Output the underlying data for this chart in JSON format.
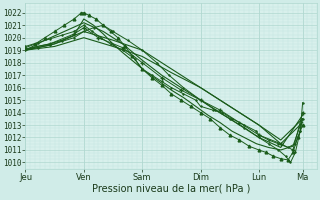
{
  "bg_color": "#d0ece8",
  "plot_bg": "#d8f0ec",
  "grid_major_color": "#b0d8d0",
  "grid_minor_color": "#c0e4de",
  "line_color": "#1a5c1a",
  "ylabel_ticks": [
    1010,
    1011,
    1012,
    1013,
    1014,
    1015,
    1016,
    1017,
    1018,
    1019,
    1020,
    1021,
    1022
  ],
  "day_labels": [
    "Jeu",
    "Ven",
    "Sam",
    "Dim",
    "Lun",
    "Ma"
  ],
  "day_positions": [
    0,
    48,
    96,
    144,
    192,
    228
  ],
  "xlabel": "Pression niveau de la mer( hPa )",
  "lines": [
    {
      "x": [
        0,
        10,
        20,
        30,
        40,
        48,
        56,
        64,
        72,
        80,
        90,
        100,
        110,
        120,
        130,
        140,
        150,
        160,
        170,
        180,
        190,
        200,
        210,
        220,
        228
      ],
      "y": [
        1019.0,
        1019.3,
        1019.5,
        1019.8,
        1020.2,
        1021.5,
        1021.0,
        1020.3,
        1019.5,
        1018.8,
        1018.0,
        1017.2,
        1016.5,
        1015.8,
        1015.2,
        1014.5,
        1013.8,
        1013.2,
        1012.5,
        1012.0,
        1011.5,
        1011.2,
        1011.0,
        1011.3,
        1013.5
      ],
      "marker": "none",
      "lw": 0.8
    },
    {
      "x": [
        0,
        8,
        16,
        24,
        32,
        40,
        46,
        48,
        52,
        58,
        64,
        70,
        76,
        82,
        88,
        96,
        104,
        112,
        120,
        128,
        136,
        144,
        152,
        160,
        168,
        176,
        184,
        192,
        198,
        204,
        210,
        216,
        220,
        224,
        228
      ],
      "y": [
        1019.2,
        1019.5,
        1020.0,
        1020.5,
        1021.0,
        1021.5,
        1022.0,
        1022.0,
        1021.8,
        1021.5,
        1021.0,
        1020.5,
        1020.0,
        1019.3,
        1018.5,
        1017.5,
        1016.8,
        1016.2,
        1015.5,
        1015.0,
        1014.5,
        1014.0,
        1013.5,
        1012.8,
        1012.2,
        1011.8,
        1011.3,
        1011.0,
        1010.8,
        1010.5,
        1010.3,
        1010.2,
        1010.8,
        1012.0,
        1013.0
      ],
      "marker": "^",
      "ms": 2,
      "lw": 0.7
    },
    {
      "x": [
        0,
        16,
        32,
        48,
        64,
        80,
        96,
        112,
        128,
        144,
        160,
        176,
        192,
        210,
        228
      ],
      "y": [
        1019.0,
        1019.8,
        1020.5,
        1021.2,
        1020.5,
        1019.5,
        1018.2,
        1017.0,
        1016.0,
        1015.0,
        1014.0,
        1013.0,
        1012.0,
        1011.2,
        1013.8
      ],
      "marker": "none",
      "lw": 0.8
    },
    {
      "x": [
        0,
        20,
        40,
        48,
        60,
        80,
        96,
        112,
        128,
        144,
        160,
        176,
        192,
        210,
        220,
        228
      ],
      "y": [
        1019.1,
        1019.5,
        1020.3,
        1020.8,
        1020.0,
        1019.2,
        1018.0,
        1016.8,
        1015.8,
        1015.0,
        1014.2,
        1013.2,
        1012.2,
        1011.5,
        1011.0,
        1014.0
      ],
      "marker": "+",
      "ms": 3,
      "lw": 0.7
    },
    {
      "x": [
        0,
        10,
        20,
        30,
        40,
        48,
        55,
        62,
        70,
        80,
        90,
        96,
        104,
        112,
        120,
        130,
        140,
        144,
        154,
        162,
        170,
        180,
        190,
        192,
        200,
        208,
        216,
        222,
        226,
        228
      ],
      "y": [
        1019.3,
        1019.6,
        1019.9,
        1020.2,
        1020.5,
        1021.0,
        1020.5,
        1020.0,
        1019.5,
        1019.0,
        1018.3,
        1017.5,
        1017.0,
        1016.5,
        1016.0,
        1015.5,
        1015.0,
        1014.5,
        1014.2,
        1014.0,
        1013.5,
        1013.0,
        1012.5,
        1012.2,
        1011.8,
        1011.5,
        1011.2,
        1011.5,
        1012.5,
        1013.5
      ],
      "marker": "+",
      "ms": 2,
      "lw": 0.7
    },
    {
      "x": [
        0,
        24,
        48,
        72,
        96,
        120,
        144,
        168,
        192,
        210,
        228
      ],
      "y": [
        1019.0,
        1019.5,
        1020.5,
        1019.8,
        1019.0,
        1017.5,
        1016.0,
        1014.5,
        1013.0,
        1011.8,
        1013.5
      ],
      "marker": "none",
      "lw": 0.8
    },
    {
      "x": [
        0,
        10,
        20,
        30,
        40,
        48,
        56,
        64,
        72,
        84,
        96,
        108,
        118,
        130,
        144,
        156,
        168,
        180,
        192,
        200,
        208,
        214,
        218,
        222,
        226,
        228
      ],
      "y": [
        1019.0,
        1019.2,
        1019.4,
        1019.7,
        1020.0,
        1020.5,
        1020.8,
        1021.0,
        1020.5,
        1019.8,
        1019.0,
        1018.0,
        1017.0,
        1016.0,
        1015.0,
        1014.2,
        1013.5,
        1012.8,
        1012.0,
        1011.5,
        1011.0,
        1010.5,
        1010.0,
        1010.8,
        1012.5,
        1014.8
      ],
      "marker": "+",
      "ms": 2,
      "lw": 0.7
    },
    {
      "x": [
        0,
        24,
        48,
        72,
        96,
        120,
        144,
        168,
        192,
        210,
        228
      ],
      "y": [
        1019.0,
        1019.3,
        1020.0,
        1019.3,
        1018.5,
        1017.2,
        1016.0,
        1014.5,
        1013.0,
        1011.5,
        1013.2
      ],
      "marker": "none",
      "lw": 0.8
    }
  ],
  "xlim": [
    0,
    240
  ],
  "ylim": [
    1009.5,
    1022.8
  ],
  "tick_fontsize": 5.5,
  "xlabel_fontsize": 7
}
